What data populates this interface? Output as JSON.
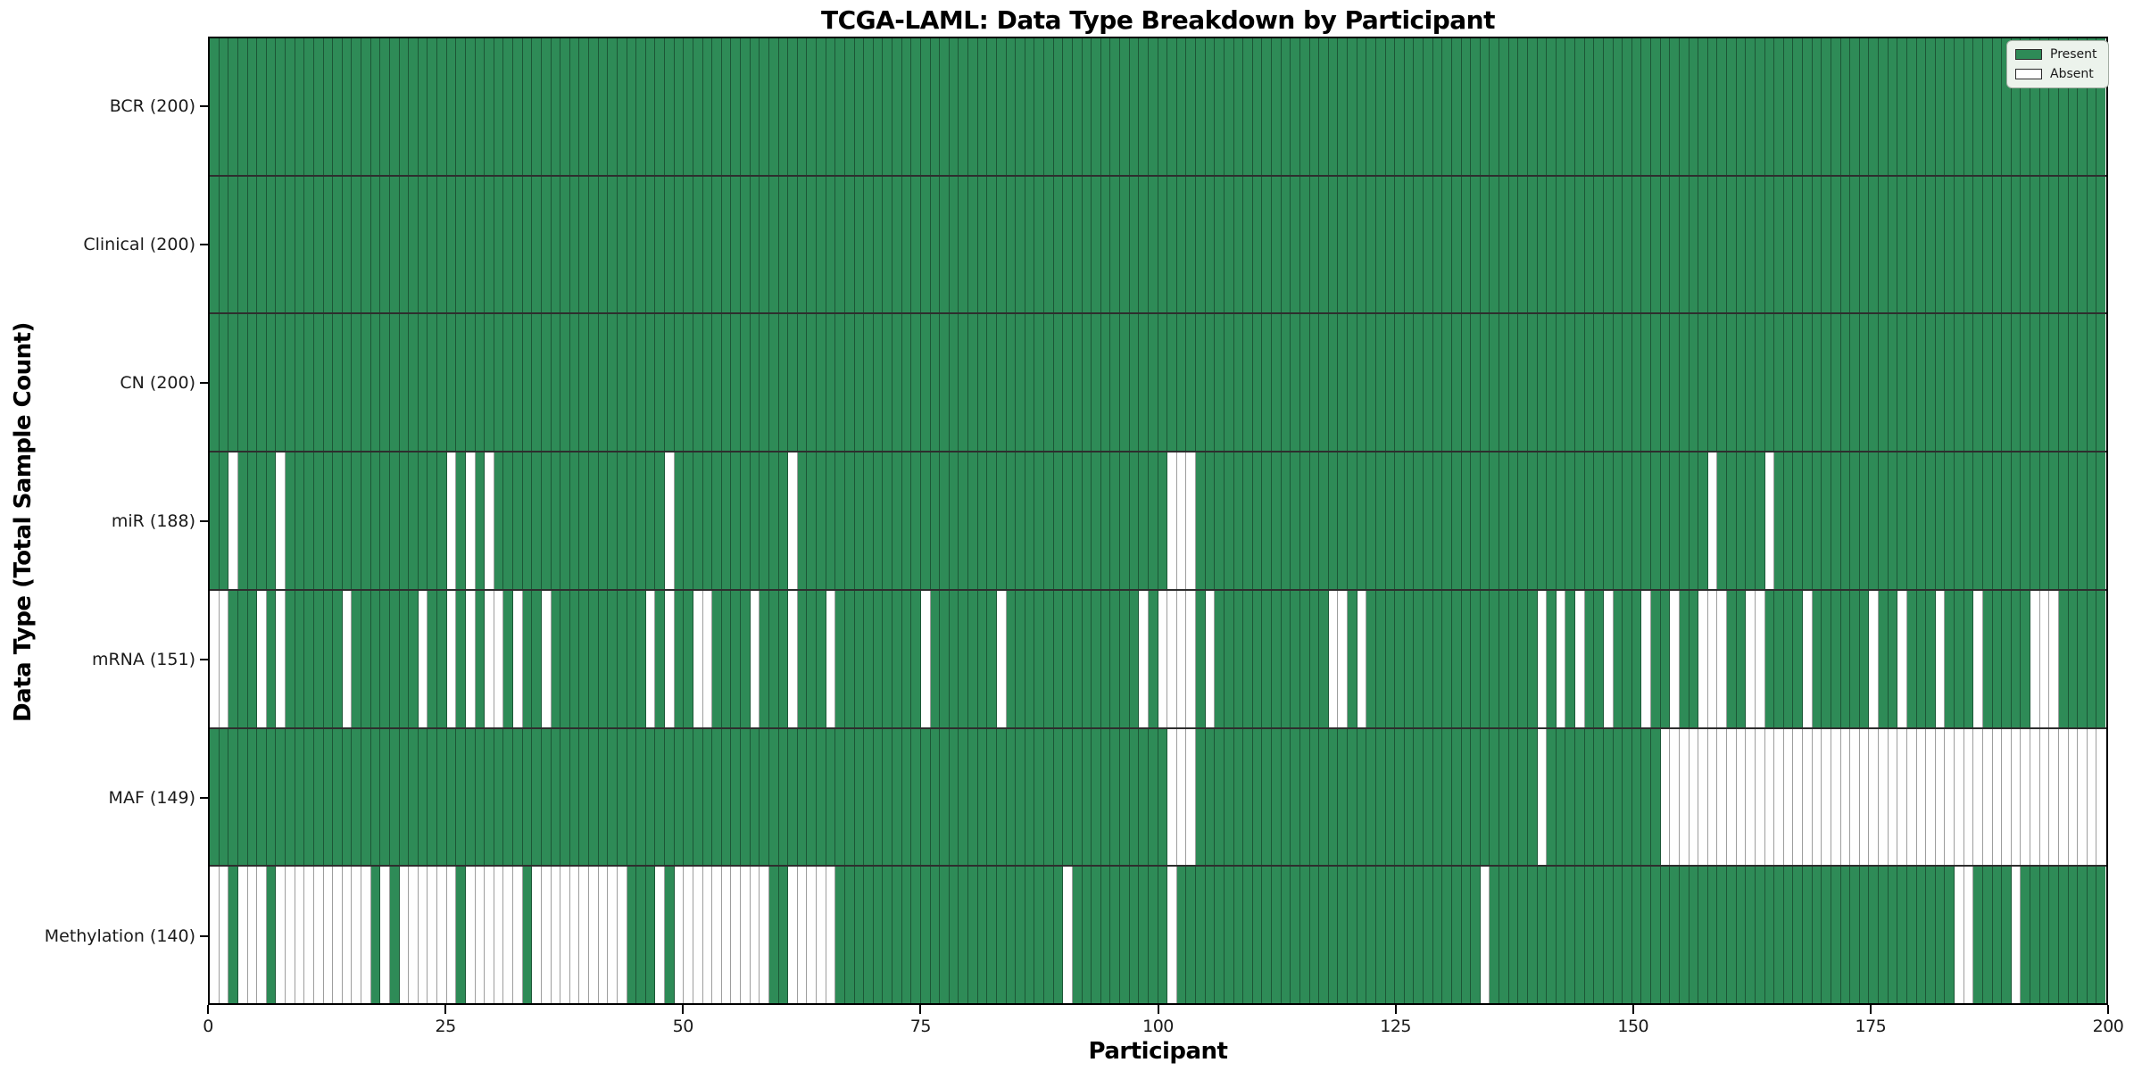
{
  "title": "TCGA-LAML: Data Type Breakdown by Participant",
  "axes": {
    "xlabel": "Participant",
    "ylabel": "Data Type (Total Sample Count)"
  },
  "legend": {
    "present_label": "Present",
    "absent_label": "Absent"
  },
  "colors": {
    "present": "#2e8b57",
    "absent": "#ffffff",
    "grid_line": "rgba(0,0,0,0.38)",
    "row_separator": "rgba(0,0,0,0.82)",
    "plot_border": "#000000",
    "text": "#1a1a1a",
    "legend_bg": "#ecf3ec",
    "legend_border": "#a3ada3"
  },
  "x_ticks": [
    0,
    25,
    50,
    75,
    100,
    125,
    150,
    175,
    200
  ],
  "chart_data": {
    "type": "heatmap",
    "title": "TCGA-LAML: Data Type Breakdown by Participant",
    "xlabel": "Participant",
    "ylabel": "Data Type (Total Sample Count)",
    "x_range": [
      0,
      200
    ],
    "n_participants": 200,
    "legend_position": "upper right",
    "cell_values": {
      "present": 1,
      "absent": 0
    },
    "rows": [
      {
        "label": "BCR (200)",
        "data_type": "BCR",
        "present_count": 200,
        "absent_participants": []
      },
      {
        "label": "Clinical (200)",
        "data_type": "Clinical",
        "present_count": 200,
        "absent_participants": []
      },
      {
        "label": "CN (200)",
        "data_type": "CN",
        "present_count": 200,
        "absent_participants": []
      },
      {
        "label": "miR (188)",
        "data_type": "miR",
        "present_count": 188,
        "absent_participants": [
          2,
          7,
          25,
          27,
          29,
          48,
          61,
          101,
          102,
          103,
          158,
          164
        ]
      },
      {
        "label": "mRNA (151)",
        "data_type": "mRNA",
        "present_count": 151,
        "absent_participants": [
          0,
          1,
          5,
          7,
          14,
          22,
          25,
          27,
          29,
          30,
          32,
          35,
          46,
          48,
          51,
          52,
          57,
          61,
          65,
          75,
          83,
          98,
          100,
          101,
          102,
          103,
          105,
          118,
          119,
          121,
          140,
          142,
          144,
          147,
          151,
          154,
          157,
          158,
          159,
          162,
          163,
          168,
          175,
          178,
          182,
          186,
          192,
          193,
          194
        ]
      },
      {
        "label": "MAF (149)",
        "data_type": "MAF",
        "present_count": 149,
        "absent_participants": [
          101,
          102,
          103,
          140,
          153,
          154,
          155,
          156,
          157,
          158,
          159,
          160,
          161,
          162,
          163,
          164,
          165,
          166,
          167,
          168,
          169,
          170,
          171,
          172,
          173,
          174,
          175,
          176,
          177,
          178,
          179,
          180,
          181,
          182,
          183,
          184,
          185,
          186,
          187,
          188,
          189,
          190,
          191,
          192,
          193,
          194,
          195,
          196,
          197,
          198,
          199
        ]
      },
      {
        "label": "Methylation (140)",
        "data_type": "Methylation",
        "present_count": 140,
        "absent_participants": [
          0,
          1,
          3,
          4,
          5,
          7,
          8,
          9,
          10,
          11,
          12,
          13,
          14,
          15,
          16,
          18,
          20,
          21,
          22,
          23,
          24,
          25,
          27,
          28,
          29,
          30,
          31,
          32,
          34,
          35,
          36,
          37,
          38,
          39,
          40,
          41,
          42,
          43,
          47,
          49,
          50,
          51,
          52,
          53,
          54,
          55,
          56,
          57,
          58,
          61,
          62,
          63,
          64,
          65,
          90,
          101,
          134,
          184,
          185,
          190
        ]
      }
    ]
  }
}
